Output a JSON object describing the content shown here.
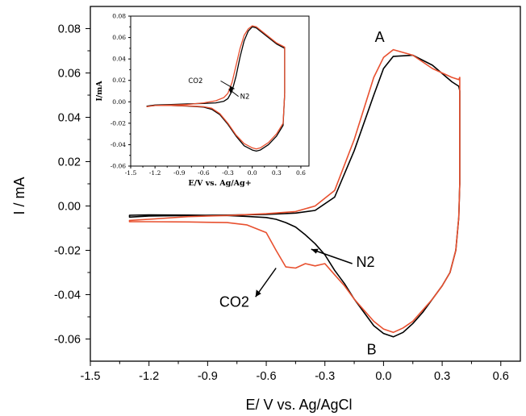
{
  "chart_data": [
    {
      "type": "line",
      "title": "",
      "xlabel": "E/ V vs. Ag/AgCl",
      "ylabel": "I / mA",
      "xlim": [
        -1.5,
        0.7
      ],
      "ylim": [
        -0.07,
        0.09
      ],
      "x_ticks": [
        "-1.5",
        "-1.2",
        "-0.9",
        "-0.6",
        "-0.3",
        "0.0",
        "0.3",
        "0.6"
      ],
      "y_ticks": [
        "-0.06",
        "-0.04",
        "-0.02",
        "0.00",
        "0.02",
        "0.04",
        "0.06",
        "0.08"
      ],
      "annotations": [
        "A",
        "B",
        "N2",
        "CO2"
      ],
      "series": [
        {
          "name": "N2",
          "color": "#000000",
          "x": [
            -1.3,
            -1.2,
            -1.0,
            -0.8,
            -0.6,
            -0.45,
            -0.35,
            -0.25,
            -0.15,
            -0.05,
            0.0,
            0.05,
            0.15,
            0.25,
            0.35,
            0.385,
            0.39,
            0.39,
            0.385,
            0.37,
            0.34,
            0.3,
            0.25,
            0.2,
            0.15,
            0.1,
            0.05,
            0.0,
            -0.05,
            -0.1,
            -0.15,
            -0.2,
            -0.25,
            -0.3,
            -0.35,
            -0.4,
            -0.45,
            -0.5,
            -0.55,
            -0.6,
            -0.7,
            -0.8,
            -1.0,
            -1.2,
            -1.3
          ],
          "y": [
            -0.005,
            -0.0045,
            -0.0043,
            -0.0041,
            -0.0038,
            -0.0032,
            -0.002,
            0.004,
            0.025,
            0.05,
            0.062,
            0.0675,
            0.068,
            0.0635,
            0.056,
            0.054,
            0.052,
            0.01,
            -0.005,
            -0.02,
            -0.03,
            -0.036,
            -0.042,
            -0.048,
            -0.053,
            -0.057,
            -0.059,
            -0.0575,
            -0.054,
            -0.048,
            -0.042,
            -0.035,
            -0.029,
            -0.022,
            -0.017,
            -0.013,
            -0.0095,
            -0.0075,
            -0.006,
            -0.0052,
            -0.0047,
            -0.0043,
            -0.0041,
            -0.004,
            -0.0042
          ]
        },
        {
          "name": "CO2",
          "color": "#e8502f",
          "x": [
            -1.3,
            -1.2,
            -1.0,
            -0.8,
            -0.6,
            -0.45,
            -0.35,
            -0.25,
            -0.15,
            -0.05,
            0.0,
            0.05,
            0.15,
            0.25,
            0.35,
            0.385,
            0.39,
            0.39,
            0.385,
            0.37,
            0.34,
            0.3,
            0.25,
            0.2,
            0.15,
            0.1,
            0.05,
            0.0,
            -0.05,
            -0.1,
            -0.15,
            -0.2,
            -0.25,
            -0.3,
            -0.35,
            -0.4,
            -0.45,
            -0.5,
            -0.55,
            -0.6,
            -0.7,
            -0.8,
            -1.0,
            -1.2,
            -1.3
          ],
          "y": [
            -0.0065,
            -0.006,
            -0.0048,
            -0.0043,
            -0.0035,
            -0.0025,
            0.0,
            0.007,
            0.03,
            0.058,
            0.067,
            0.0705,
            0.068,
            0.062,
            0.058,
            0.057,
            0.058,
            0.01,
            -0.005,
            -0.02,
            -0.03,
            -0.036,
            -0.042,
            -0.047,
            -0.052,
            -0.055,
            -0.057,
            -0.0555,
            -0.052,
            -0.047,
            -0.042,
            -0.036,
            -0.031,
            -0.026,
            -0.027,
            -0.026,
            -0.028,
            -0.0275,
            -0.02,
            -0.012,
            -0.0085,
            -0.0075,
            -0.0072,
            -0.0071,
            -0.0071
          ]
        }
      ]
    },
    {
      "type": "line",
      "title": "",
      "xlabel": "E/V vs. Ag/Ag+",
      "ylabel": "I/mA",
      "xlim": [
        -1.5,
        0.7
      ],
      "ylim": [
        -0.06,
        0.08
      ],
      "x_ticks": [
        "-1.5",
        "-1.2",
        "-0.9",
        "-0.6",
        "-0.3",
        "0.0",
        "0.3",
        "0.6"
      ],
      "y_ticks": [
        "-0.06",
        "-0.04",
        "-0.02",
        "0.00",
        "0.02",
        "0.04",
        "0.06",
        "0.08"
      ],
      "annotations": [
        "CO2",
        "N2"
      ],
      "series": [
        {
          "name": "N2",
          "color": "#000000",
          "x": [
            -1.3,
            -1.2,
            -1.0,
            -0.8,
            -0.6,
            -0.45,
            -0.35,
            -0.3,
            -0.25,
            -0.2,
            -0.15,
            -0.1,
            -0.05,
            0.0,
            0.05,
            0.1,
            0.2,
            0.3,
            0.4,
            0.4,
            0.38,
            0.3,
            0.2,
            0.1,
            0.05,
            0.0,
            -0.1,
            -0.2,
            -0.3,
            -0.4,
            -0.5,
            -0.6,
            -0.8,
            -1.0,
            -1.2,
            -1.3
          ],
          "y": [
            -0.004,
            -0.003,
            -0.0025,
            -0.002,
            -0.0015,
            -0.001,
            0.0005,
            0.003,
            0.01,
            0.024,
            0.042,
            0.057,
            0.066,
            0.07,
            0.069,
            0.066,
            0.06,
            0.054,
            0.05,
            0.008,
            -0.022,
            -0.032,
            -0.04,
            -0.045,
            -0.046,
            -0.045,
            -0.041,
            -0.032,
            -0.021,
            -0.012,
            -0.007,
            -0.005,
            -0.004,
            -0.0035,
            -0.0035,
            -0.004
          ]
        },
        {
          "name": "CO2",
          "color": "#e8502f",
          "x": [
            -1.3,
            -1.2,
            -1.0,
            -0.8,
            -0.6,
            -0.45,
            -0.35,
            -0.3,
            -0.25,
            -0.2,
            -0.15,
            -0.1,
            -0.05,
            0.0,
            0.05,
            0.1,
            0.2,
            0.3,
            0.4,
            0.4,
            0.38,
            0.3,
            0.2,
            0.1,
            0.05,
            0.0,
            -0.1,
            -0.2,
            -0.3,
            -0.4,
            -0.5,
            -0.6,
            -0.8,
            -1.0,
            -1.2,
            -1.3
          ],
          "y": [
            -0.0045,
            -0.0035,
            -0.003,
            -0.0025,
            -0.001,
            0.001,
            0.004,
            0.008,
            0.018,
            0.034,
            0.05,
            0.062,
            0.068,
            0.071,
            0.07,
            0.067,
            0.061,
            0.055,
            0.051,
            0.008,
            -0.02,
            -0.03,
            -0.038,
            -0.043,
            -0.044,
            -0.043,
            -0.039,
            -0.031,
            -0.02,
            -0.011,
            -0.006,
            -0.0045,
            -0.0038,
            -0.0034,
            -0.0035,
            -0.0045
          ]
        }
      ]
    }
  ]
}
